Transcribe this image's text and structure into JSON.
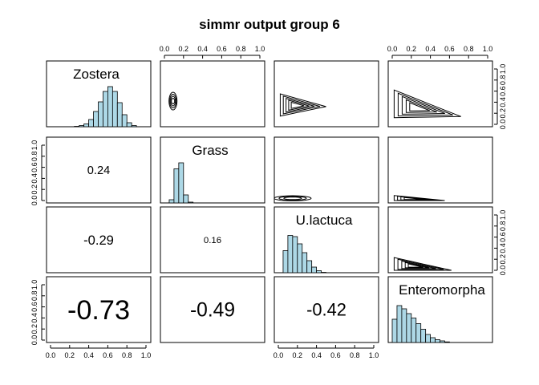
{
  "chart_data": {
    "type": "pairs",
    "title": "simmr output group 6",
    "variables": [
      "Zostera",
      "Grass",
      "U.lactuca",
      "Enteromorpha"
    ],
    "axis_range": [
      0,
      1
    ],
    "ticks": [
      "0.0",
      "0.2",
      "0.4",
      "0.6",
      "0.8",
      "1.0"
    ],
    "histogram_bins": [
      0,
      0.05,
      0.1,
      0.15,
      0.2,
      0.25,
      0.3,
      0.35,
      0.4,
      0.45,
      0.5,
      0.55,
      0.6,
      0.65,
      0.7,
      0.75,
      0.8,
      0.85,
      0.9,
      0.95,
      1.0
    ],
    "histograms": {
      "Zostera": [
        0,
        0,
        0,
        0,
        0,
        0.01,
        0.03,
        0.07,
        0.18,
        0.38,
        0.62,
        0.88,
        1.0,
        0.88,
        0.6,
        0.3,
        0.1,
        0.03,
        0,
        0
      ],
      "Grass": [
        0,
        0.08,
        0.85,
        1.0,
        0.2,
        0.02,
        0,
        0,
        0,
        0,
        0,
        0,
        0,
        0,
        0,
        0,
        0,
        0,
        0,
        0
      ],
      "U.lactuca": [
        0,
        0.55,
        0.93,
        0.9,
        0.72,
        0.5,
        0.3,
        0.14,
        0.05,
        0.01,
        0,
        0,
        0,
        0,
        0,
        0,
        0,
        0,
        0,
        0
      ],
      "Enteromorpha": [
        0.58,
        0.92,
        0.84,
        0.72,
        0.61,
        0.47,
        0.33,
        0.2,
        0.12,
        0.07,
        0.04,
        0.015,
        0,
        0,
        0,
        0,
        0,
        0,
        0,
        0
      ]
    },
    "correlations": [
      {
        "pair": [
          "Zostera",
          "Grass"
        ],
        "value": "0.24"
      },
      {
        "pair": [
          "Zostera",
          "U.lactuca"
        ],
        "value": "-0.29"
      },
      {
        "pair": [
          "Zostera",
          "Enteromorpha"
        ],
        "value": "-0.73"
      },
      {
        "pair": [
          "Grass",
          "U.lactuca"
        ],
        "value": "0.16"
      },
      {
        "pair": [
          "Grass",
          "Enteromorpha"
        ],
        "value": "-0.49"
      },
      {
        "pair": [
          "U.lactuca",
          "Enteromorpha"
        ],
        "value": "-0.42"
      }
    ],
    "contour_plots": [
      {
        "x": "Grass",
        "y": "Zostera"
      },
      {
        "x": "U.lactuca",
        "y": "Zostera"
      },
      {
        "x": "Enteromorpha",
        "y": "Zostera"
      },
      {
        "x": "U.lactuca",
        "y": "Grass"
      },
      {
        "x": "Enteromorpha",
        "y": "Grass"
      },
      {
        "x": "Enteromorpha",
        "y": "U.lactuca"
      }
    ]
  }
}
